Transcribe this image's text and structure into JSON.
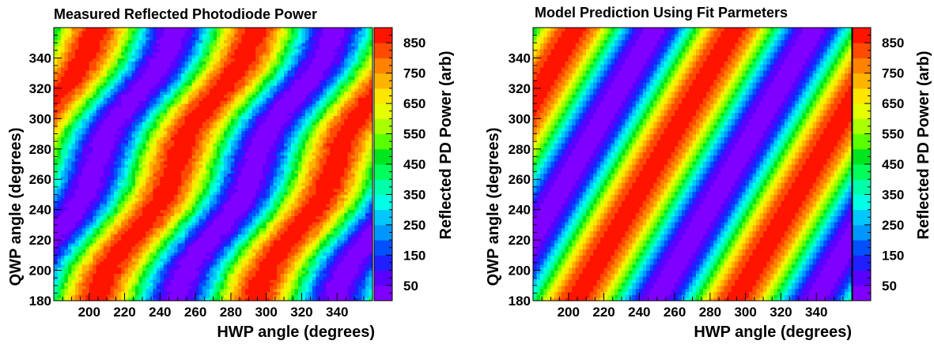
{
  "colors": {
    "palette": [
      "#7f00ff",
      "#5a00ff",
      "#1f1fff",
      "#0050ff",
      "#0096ff",
      "#00c8ff",
      "#00ffe6",
      "#00ffaa",
      "#00ff5a",
      "#00e61e",
      "#5aff00",
      "#aaff00",
      "#e6ff00",
      "#ffe600",
      "#ffb400",
      "#ff8200",
      "#ff4b00",
      "#ff1400"
    ]
  },
  "chart_data": [
    {
      "type": "heatmap",
      "title": "Measured Reflected Photodiode Power",
      "xlabel": "HWP angle  (degrees)",
      "ylabel": "QWP angle  (degrees)",
      "zlabel": "Reflected PD Power (arb)",
      "xlim": [
        180,
        360
      ],
      "ylim": [
        180,
        360
      ],
      "zlim": [
        0,
        900
      ],
      "x_ticks": [
        "200",
        "220",
        "240",
        "260",
        "280",
        "300",
        "320",
        "340"
      ],
      "y_ticks": [
        "180",
        "200",
        "220",
        "240",
        "260",
        "280",
        "300",
        "320",
        "340"
      ],
      "z_ticks": [
        "50",
        "150",
        "250",
        "350",
        "450",
        "550",
        "650",
        "750",
        "850"
      ],
      "legend": "colorbar-right",
      "grid": false,
      "model": "power = 450 + 440*cos(4*(HWP - 0.5*QWP) - 95)",
      "measured_noise": true
    },
    {
      "type": "heatmap",
      "title": "Model Prediction Using Fit Parmeters",
      "xlabel": "HWP angle  (degrees)",
      "ylabel": "QWP angle  (degrees)",
      "zlabel": "Reflected PD Power (arb)",
      "xlim": [
        180,
        360
      ],
      "ylim": [
        180,
        360
      ],
      "zlim": [
        0,
        900
      ],
      "x_ticks": [
        "200",
        "220",
        "240",
        "260",
        "280",
        "300",
        "320",
        "340"
      ],
      "y_ticks": [
        "180",
        "200",
        "220",
        "240",
        "260",
        "280",
        "300",
        "320",
        "340"
      ],
      "z_ticks": [
        "50",
        "150",
        "250",
        "350",
        "450",
        "550",
        "650",
        "750",
        "850"
      ],
      "legend": "colorbar-right",
      "grid": false,
      "model": "power = 450 + 440*cos(4*(HWP - 0.5*QWP) - 95)",
      "measured_noise": false
    }
  ]
}
